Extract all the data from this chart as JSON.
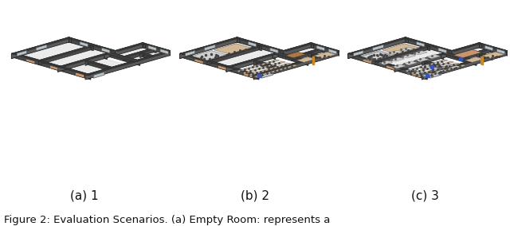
{
  "fig_width": 6.4,
  "fig_height": 2.84,
  "background_color": "#ffffff",
  "subcaptions": [
    "(a) 1",
    "(b) 2",
    "(c) 3"
  ],
  "figure_caption": "Figure 2: Evaluation Scenarios. (a) Empty Room: represents a",
  "caption_fontsize": 9.5,
  "subcaption_fontsize": 11.0,
  "wall_dark": "#4a4a4a",
  "wall_darker": "#383838",
  "wall_medium": "#666666",
  "wall_side": "#555555",
  "floor_light": "#e8e8e8",
  "floor_lighter": "#f2f2f2",
  "ceiling_top": "#3d3d3d",
  "brown1": "#c8956c",
  "brown2": "#b07840",
  "tan": "#d4b896",
  "blue": "#3355cc",
  "orange": "#cc8822",
  "dark_furn": "#444444",
  "gray_furn": "#888888",
  "light_furn": "#bbbbbb"
}
